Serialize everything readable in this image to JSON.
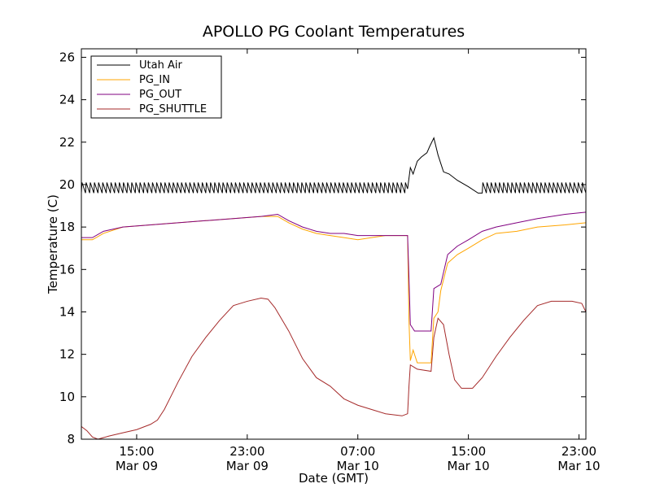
{
  "chart_data": {
    "type": "line",
    "title": "APOLLO PG Coolant Temperatures",
    "xlabel": "Date (GMT)",
    "ylabel": "Temperature (C)",
    "x_unit": "hours since Mar 09 11:00 GMT",
    "xlim": [
      0,
      36.5
    ],
    "ylim": [
      8,
      26.4
    ],
    "yticks": [
      8,
      10,
      12,
      14,
      16,
      18,
      20,
      22,
      24,
      26
    ],
    "xticks": [
      {
        "x": 4,
        "line1": "15:00",
        "line2": "Mar 09"
      },
      {
        "x": 12,
        "line1": "23:00",
        "line2": "Mar 09"
      },
      {
        "x": 20,
        "line1": "07:00",
        "line2": "Mar 10"
      },
      {
        "x": 28,
        "line1": "15:00",
        "line2": "Mar 10"
      },
      {
        "x": 36,
        "line1": "23:00",
        "line2": "Mar 10"
      }
    ],
    "legend_position": "top-left",
    "series": [
      {
        "name": "Utah Air",
        "color": "#000000",
        "sawtooth": {
          "low": 19.6,
          "high": 20.1,
          "period": 0.3,
          "ranges": [
            [
              0,
              23.6
            ],
            [
              28.7,
              36.5
            ]
          ]
        },
        "points": [
          [
            23.6,
            19.8
          ],
          [
            23.8,
            20.8
          ],
          [
            24.0,
            20.5
          ],
          [
            24.3,
            21.1
          ],
          [
            24.6,
            21.3
          ],
          [
            25.0,
            21.5
          ],
          [
            25.2,
            21.8
          ],
          [
            25.5,
            22.2
          ],
          [
            25.8,
            21.4
          ],
          [
            26.2,
            20.6
          ],
          [
            26.6,
            20.5
          ],
          [
            27.2,
            20.2
          ],
          [
            28.0,
            19.9
          ],
          [
            28.7,
            19.6
          ]
        ]
      },
      {
        "name": "PG_IN",
        "color": "#ffa500",
        "points": [
          [
            0,
            17.4
          ],
          [
            0.8,
            17.4
          ],
          [
            1.6,
            17.7
          ],
          [
            3,
            18.0
          ],
          [
            5,
            18.1
          ],
          [
            7,
            18.2
          ],
          [
            9,
            18.3
          ],
          [
            11,
            18.4
          ],
          [
            13,
            18.5
          ],
          [
            14.2,
            18.5
          ],
          [
            15,
            18.2
          ],
          [
            16,
            17.9
          ],
          [
            17,
            17.7
          ],
          [
            18,
            17.6
          ],
          [
            19,
            17.5
          ],
          [
            20,
            17.4
          ],
          [
            21,
            17.5
          ],
          [
            22,
            17.6
          ],
          [
            23.6,
            17.6
          ],
          [
            23.7,
            13.6
          ],
          [
            23.8,
            11.7
          ],
          [
            24.0,
            12.2
          ],
          [
            24.3,
            11.6
          ],
          [
            25.3,
            11.6
          ],
          [
            25.5,
            13.7
          ],
          [
            25.8,
            14.0
          ],
          [
            26.0,
            15.0
          ],
          [
            26.5,
            16.3
          ],
          [
            27.2,
            16.7
          ],
          [
            28.0,
            17.0
          ],
          [
            29.0,
            17.4
          ],
          [
            30.0,
            17.7
          ],
          [
            31.5,
            17.8
          ],
          [
            33.0,
            18.0
          ],
          [
            35.0,
            18.1
          ],
          [
            36.5,
            18.2
          ]
        ]
      },
      {
        "name": "PG_OUT",
        "color": "#800080",
        "points": [
          [
            0,
            17.5
          ],
          [
            0.8,
            17.5
          ],
          [
            1.6,
            17.8
          ],
          [
            3,
            18.0
          ],
          [
            5,
            18.1
          ],
          [
            7,
            18.2
          ],
          [
            9,
            18.3
          ],
          [
            11,
            18.4
          ],
          [
            13,
            18.5
          ],
          [
            14.2,
            18.6
          ],
          [
            15,
            18.3
          ],
          [
            16,
            18.0
          ],
          [
            17,
            17.8
          ],
          [
            18,
            17.7
          ],
          [
            19,
            17.7
          ],
          [
            20,
            17.6
          ],
          [
            21,
            17.6
          ],
          [
            22,
            17.6
          ],
          [
            23.6,
            17.6
          ],
          [
            23.7,
            15.6
          ],
          [
            23.8,
            13.4
          ],
          [
            24.1,
            13.1
          ],
          [
            25.3,
            13.1
          ],
          [
            25.5,
            15.1
          ],
          [
            26.0,
            15.3
          ],
          [
            26.5,
            16.7
          ],
          [
            27.2,
            17.1
          ],
          [
            28.0,
            17.4
          ],
          [
            29.0,
            17.8
          ],
          [
            30.0,
            18.0
          ],
          [
            31.5,
            18.2
          ],
          [
            33.0,
            18.4
          ],
          [
            35.0,
            18.6
          ],
          [
            36.5,
            18.7
          ]
        ]
      },
      {
        "name": "PG_SHUTTLE",
        "color": "#a52a2a",
        "points": [
          [
            0,
            8.6
          ],
          [
            0.4,
            8.4
          ],
          [
            0.8,
            8.1
          ],
          [
            1.2,
            8.0
          ],
          [
            2,
            8.15
          ],
          [
            3,
            8.3
          ],
          [
            4,
            8.45
          ],
          [
            5,
            8.7
          ],
          [
            5.5,
            8.9
          ],
          [
            6,
            9.4
          ],
          [
            7,
            10.7
          ],
          [
            8,
            11.9
          ],
          [
            9,
            12.8
          ],
          [
            10,
            13.6
          ],
          [
            11,
            14.3
          ],
          [
            12,
            14.5
          ],
          [
            13,
            14.65
          ],
          [
            13.5,
            14.6
          ],
          [
            14,
            14.2
          ],
          [
            15,
            13.1
          ],
          [
            16,
            11.8
          ],
          [
            17,
            10.9
          ],
          [
            18,
            10.5
          ],
          [
            19,
            9.9
          ],
          [
            20,
            9.6
          ],
          [
            21,
            9.4
          ],
          [
            22,
            9.2
          ],
          [
            23.2,
            9.1
          ],
          [
            23.6,
            9.2
          ],
          [
            23.7,
            10.5
          ],
          [
            23.8,
            11.5
          ],
          [
            24.3,
            11.3
          ],
          [
            25.3,
            11.2
          ],
          [
            25.5,
            12.8
          ],
          [
            25.8,
            13.7
          ],
          [
            26.2,
            13.4
          ],
          [
            26.6,
            12.0
          ],
          [
            27.0,
            10.8
          ],
          [
            27.5,
            10.4
          ],
          [
            28.3,
            10.4
          ],
          [
            29.0,
            10.9
          ],
          [
            30.0,
            11.9
          ],
          [
            31.0,
            12.8
          ],
          [
            32.0,
            13.6
          ],
          [
            33.0,
            14.3
          ],
          [
            34.0,
            14.5
          ],
          [
            35.5,
            14.5
          ],
          [
            36.2,
            14.4
          ],
          [
            36.5,
            14.0
          ]
        ]
      }
    ]
  }
}
